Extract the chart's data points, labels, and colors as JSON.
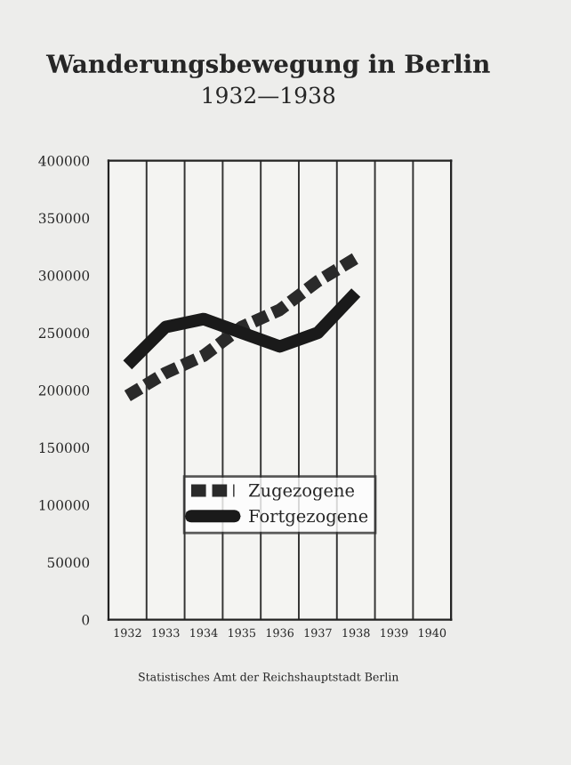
{
  "chart_data": {
    "type": "line",
    "title": "Wanderungsbewegung in Berlin",
    "subtitle": "1932—1938",
    "categories": [
      "1932",
      "1933",
      "1934",
      "1935",
      "1936",
      "1937",
      "1938",
      "1939",
      "1940"
    ],
    "series": [
      {
        "name": "Zugezogene",
        "color": "#2a2a2a",
        "line_style": "dashed",
        "values": [
          195000,
          215000,
          230000,
          255000,
          270000,
          295000,
          315000,
          null,
          null
        ]
      },
      {
        "name": "Fortgezogene",
        "color": "#1a1a1a",
        "line_style": "solid",
        "values": [
          222000,
          255000,
          262000,
          250000,
          238000,
          250000,
          285000,
          null,
          null
        ]
      }
    ],
    "ylim": [
      0,
      400000
    ],
    "yticks": [
      0,
      50000,
      100000,
      150000,
      200000,
      250000,
      300000,
      350000,
      400000
    ],
    "grid": "x",
    "legend": "bottom",
    "annotations": [
      "Statistisches Amt der Reichshauptstadt Berlin"
    ]
  }
}
